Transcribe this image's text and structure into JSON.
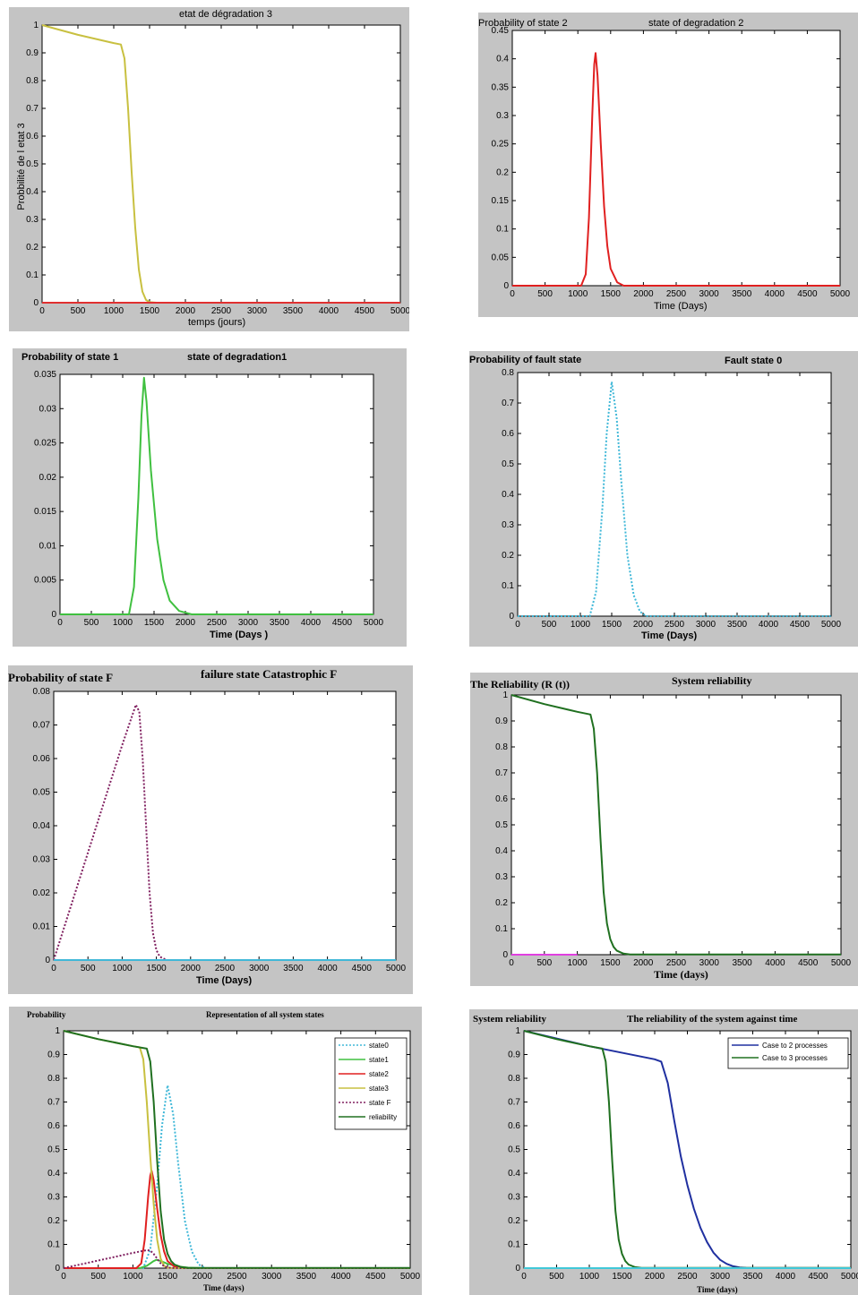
{
  "chart_data": [
    {
      "id": "p1",
      "type": "line",
      "title": "etat de dégradation 3",
      "ylabel": "Probbilité de l etat 3",
      "xlabel": "temps (jours)",
      "xlim": [
        0,
        5000
      ],
      "ylim": [
        0,
        1
      ],
      "xticks": [
        "0",
        "500",
        "1000",
        "1500",
        "2000",
        "2500",
        "3000",
        "3500",
        "4000",
        "4500",
        "5000"
      ],
      "yticks": [
        "0",
        "0.1",
        "0.2",
        "0.3",
        "0.4",
        "0.5",
        "0.6",
        "0.7",
        "0.8",
        "0.9",
        "1"
      ],
      "series": [
        {
          "color": "#c8c040",
          "style": "solid",
          "x": [
            0,
            500,
            1000,
            1100,
            1150,
            1200,
            1250,
            1300,
            1350,
            1400,
            1450,
            1500,
            1600,
            2800
          ],
          "y": [
            1,
            0.965,
            0.935,
            0.93,
            0.88,
            0.7,
            0.47,
            0.27,
            0.12,
            0.04,
            0.01,
            0.002,
            0,
            0
          ]
        },
        {
          "color": "#e03030",
          "style": "solid",
          "x": [
            0,
            5000
          ],
          "y": [
            0,
            0
          ]
        }
      ]
    },
    {
      "id": "p2",
      "type": "line",
      "title": "state of degradation 2",
      "ylabel": "Probability of state 2",
      "xlabel": "Time (Days)",
      "xlim": [
        0,
        5000
      ],
      "ylim": [
        0,
        0.45
      ],
      "xticks": [
        "0",
        "500",
        "1000",
        "1500",
        "2000",
        "2500",
        "3000",
        "3500",
        "4000",
        "4500",
        "5000"
      ],
      "yticks": [
        "0",
        "0.05",
        "0.1",
        "0.15",
        "0.2",
        "0.25",
        "0.3",
        "0.35",
        "0.4",
        "0.45"
      ],
      "series": [
        {
          "color": "#e02020",
          "style": "solid",
          "x": [
            0,
            1050,
            1120,
            1170,
            1220,
            1250,
            1270,
            1300,
            1350,
            1400,
            1450,
            1500,
            1600,
            1700,
            5000
          ],
          "y": [
            0,
            0,
            0.02,
            0.12,
            0.3,
            0.39,
            0.41,
            0.37,
            0.25,
            0.14,
            0.07,
            0.03,
            0.006,
            0,
            0
          ]
        }
      ]
    },
    {
      "id": "p3",
      "type": "line",
      "title": "state of degradation1",
      "ylabel": "Probability of state 1",
      "xlabel": "Time (Days )",
      "xlim": [
        0,
        5000
      ],
      "ylim": [
        0,
        0.035
      ],
      "xticks": [
        "0",
        "500",
        "1000",
        "1500",
        "2000",
        "2500",
        "3000",
        "3500",
        "4000",
        "4500",
        "5000"
      ],
      "yticks": [
        "0",
        "0.005",
        "0.01",
        "0.015",
        "0.02",
        "0.025",
        "0.03",
        "0.035"
      ],
      "series": [
        {
          "color": "#40c040",
          "style": "solid",
          "x": [
            0,
            1100,
            1180,
            1250,
            1300,
            1340,
            1380,
            1450,
            1550,
            1650,
            1750,
            1900,
            2100,
            5000
          ],
          "y": [
            0,
            0,
            0.004,
            0.017,
            0.029,
            0.0345,
            0.031,
            0.021,
            0.011,
            0.005,
            0.002,
            0.0005,
            0,
            0
          ]
        }
      ]
    },
    {
      "id": "p4",
      "type": "line",
      "title": "Fault state 0",
      "ylabel": "Probability of fault state",
      "xlabel": "Time (Days)",
      "xlim": [
        0,
        5000
      ],
      "ylim": [
        0,
        0.8
      ],
      "xticks": [
        "0",
        "500",
        "1000",
        "1500",
        "2000",
        "2500",
        "3000",
        "3500",
        "4000",
        "4500",
        "5000"
      ],
      "yticks": [
        "0",
        "0.1",
        "0.2",
        "0.3",
        "0.4",
        "0.5",
        "0.6",
        "0.7",
        "0.8"
      ],
      "series": [
        {
          "color": "#40b8d8",
          "style": "dotted",
          "x": [
            0,
            1150,
            1250,
            1350,
            1420,
            1500,
            1580,
            1650,
            1750,
            1850,
            1950,
            2050,
            5000
          ],
          "y": [
            0,
            0,
            0.08,
            0.35,
            0.6,
            0.77,
            0.65,
            0.45,
            0.2,
            0.07,
            0.015,
            0,
            0
          ]
        }
      ]
    },
    {
      "id": "p5",
      "type": "line",
      "title": "failure state  Catastrophic F",
      "ylabel": "Probability of state F",
      "xlabel": "Time (Days)",
      "xlim": [
        0,
        5000
      ],
      "ylim": [
        0,
        0.08
      ],
      "xticks": [
        "0",
        "500",
        "1000",
        "1500",
        "2000",
        "2500",
        "3000",
        "3500",
        "4000",
        "4500",
        "5000"
      ],
      "yticks": [
        "0",
        "0.01",
        "0.02",
        "0.03",
        "0.04",
        "0.05",
        "0.06",
        "0.07",
        "0.08"
      ],
      "series": [
        {
          "color": "#802060",
          "style": "dotted",
          "x": [
            0,
            500,
            1000,
            1200,
            1250,
            1300,
            1350,
            1400,
            1450,
            1500,
            1550,
            1650,
            5000
          ],
          "y": [
            0,
            0.032,
            0.064,
            0.076,
            0.074,
            0.06,
            0.04,
            0.02,
            0.008,
            0.003,
            0.001,
            0,
            0
          ]
        },
        {
          "color": "#40b8d8",
          "style": "solid",
          "x": [
            0,
            5000
          ],
          "y": [
            0,
            0
          ]
        }
      ]
    },
    {
      "id": "p6",
      "type": "line",
      "title": "System reliability",
      "ylabel": "The Reliability (R (t))",
      "xlabel": "Time (days)",
      "xlim": [
        0,
        5000
      ],
      "ylim": [
        0,
        1
      ],
      "xticks": [
        "0",
        "500",
        "1000",
        "1500",
        "2000",
        "2500",
        "3000",
        "3500",
        "4000",
        "4500",
        "5000"
      ],
      "yticks": [
        "0",
        "0.1",
        "0.2",
        "0.3",
        "0.4",
        "0.5",
        "0.6",
        "0.7",
        "0.8",
        "0.9",
        "1"
      ],
      "series": [
        {
          "color": "#207020",
          "style": "solid",
          "x": [
            0,
            500,
            1000,
            1200,
            1250,
            1300,
            1350,
            1400,
            1450,
            1500,
            1550,
            1600,
            1700,
            1800,
            5000
          ],
          "y": [
            1,
            0.965,
            0.935,
            0.925,
            0.87,
            0.7,
            0.45,
            0.24,
            0.12,
            0.06,
            0.03,
            0.015,
            0.004,
            0.001,
            0.001
          ]
        },
        {
          "color": "#e040e0",
          "style": "solid",
          "x": [
            0,
            1000
          ],
          "y": [
            0,
            0
          ]
        }
      ]
    },
    {
      "id": "p7",
      "type": "line",
      "title": "Representation of all system states",
      "ylabel": "Probability",
      "xlabel": "Time (days)",
      "xlim": [
        0,
        5000
      ],
      "ylim": [
        0,
        1
      ],
      "xticks": [
        "0",
        "500",
        "1000",
        "1500",
        "2000",
        "2500",
        "3000",
        "3500",
        "4000",
        "4500",
        "5000"
      ],
      "yticks": [
        "0",
        "0.1",
        "0.2",
        "0.3",
        "0.4",
        "0.5",
        "0.6",
        "0.7",
        "0.8",
        "0.9",
        "1"
      ],
      "legend_position": "top-right",
      "series": [
        {
          "name": "state0",
          "color": "#40b8d8",
          "style": "dotted",
          "x": [
            0,
            1150,
            1250,
            1350,
            1420,
            1500,
            1580,
            1650,
            1750,
            1850,
            1950,
            2050,
            5000
          ],
          "y": [
            0,
            0,
            0.08,
            0.35,
            0.6,
            0.77,
            0.65,
            0.45,
            0.2,
            0.07,
            0.015,
            0,
            0
          ]
        },
        {
          "name": "state1",
          "color": "#40c040",
          "style": "solid",
          "x": [
            0,
            1100,
            1200,
            1300,
            1340,
            1400,
            1500,
            1650,
            1800,
            2000,
            5000
          ],
          "y": [
            0,
            0,
            0.01,
            0.03,
            0.035,
            0.03,
            0.018,
            0.007,
            0.002,
            0,
            0
          ]
        },
        {
          "name": "state2",
          "color": "#e02020",
          "style": "solid",
          "x": [
            0,
            1050,
            1120,
            1170,
            1220,
            1250,
            1270,
            1300,
            1350,
            1400,
            1450,
            1500,
            1600,
            1700,
            5000
          ],
          "y": [
            0,
            0,
            0.02,
            0.12,
            0.3,
            0.39,
            0.41,
            0.37,
            0.25,
            0.14,
            0.07,
            0.03,
            0.006,
            0,
            0
          ]
        },
        {
          "name": "state3",
          "color": "#c8c040",
          "style": "solid",
          "x": [
            0,
            500,
            1000,
            1100,
            1150,
            1200,
            1250,
            1300,
            1350,
            1400,
            1450,
            1500,
            1600,
            5000
          ],
          "y": [
            1,
            0.965,
            0.935,
            0.93,
            0.88,
            0.7,
            0.47,
            0.27,
            0.12,
            0.04,
            0.01,
            0.002,
            0,
            0
          ]
        },
        {
          "name": "state F",
          "color": "#802060",
          "style": "dotted",
          "x": [
            0,
            500,
            1000,
            1200,
            1250,
            1300,
            1350,
            1400,
            1450,
            1500,
            1550,
            1650,
            5000
          ],
          "y": [
            0,
            0.032,
            0.064,
            0.076,
            0.074,
            0.06,
            0.04,
            0.02,
            0.008,
            0.003,
            0.001,
            0,
            0
          ]
        },
        {
          "name": "reliability",
          "color": "#207020",
          "style": "solid",
          "x": [
            0,
            500,
            1000,
            1200,
            1250,
            1300,
            1350,
            1400,
            1450,
            1500,
            1550,
            1600,
            1700,
            1800,
            5000
          ],
          "y": [
            1,
            0.965,
            0.935,
            0.925,
            0.87,
            0.7,
            0.45,
            0.24,
            0.12,
            0.06,
            0.03,
            0.015,
            0.004,
            0.001,
            0.001
          ]
        }
      ]
    },
    {
      "id": "p8",
      "type": "line",
      "title": "The reliability of the system against time",
      "ylabel": "System reliability",
      "xlabel": "Time (days)",
      "xlim": [
        0,
        5000
      ],
      "ylim": [
        0,
        1
      ],
      "xticks": [
        "0",
        "500",
        "1000",
        "1500",
        "2000",
        "2500",
        "3000",
        "3500",
        "4000",
        "4500",
        "5000"
      ],
      "yticks": [
        "0",
        "0.1",
        "0.2",
        "0.3",
        "0.4",
        "0.5",
        "0.6",
        "0.7",
        "0.8",
        "0.9",
        "1"
      ],
      "legend_position": "top-right",
      "series": [
        {
          "name": "Case to 2 processes",
          "color": "#2030a0",
          "style": "solid",
          "x": [
            0,
            1000,
            2000,
            2100,
            2200,
            2300,
            2400,
            2500,
            2600,
            2700,
            2800,
            2900,
            3000,
            3100,
            3200,
            3300,
            3400,
            5000
          ],
          "y": [
            1,
            0.935,
            0.88,
            0.87,
            0.78,
            0.62,
            0.47,
            0.35,
            0.25,
            0.17,
            0.11,
            0.065,
            0.035,
            0.018,
            0.008,
            0.003,
            0.001,
            0
          ]
        },
        {
          "name": "Case to 3 processes",
          "color": "#207020",
          "style": "solid",
          "x": [
            0,
            500,
            1000,
            1200,
            1250,
            1300,
            1350,
            1400,
            1450,
            1500,
            1550,
            1600,
            1700,
            1800,
            5000
          ],
          "y": [
            1,
            0.965,
            0.935,
            0.925,
            0.87,
            0.7,
            0.45,
            0.24,
            0.12,
            0.06,
            0.03,
            0.015,
            0.004,
            0.001,
            0.001
          ]
        },
        {
          "color": "#40c8d8",
          "style": "solid",
          "x": [
            0,
            5000
          ],
          "y": [
            0,
            0
          ]
        }
      ]
    }
  ]
}
